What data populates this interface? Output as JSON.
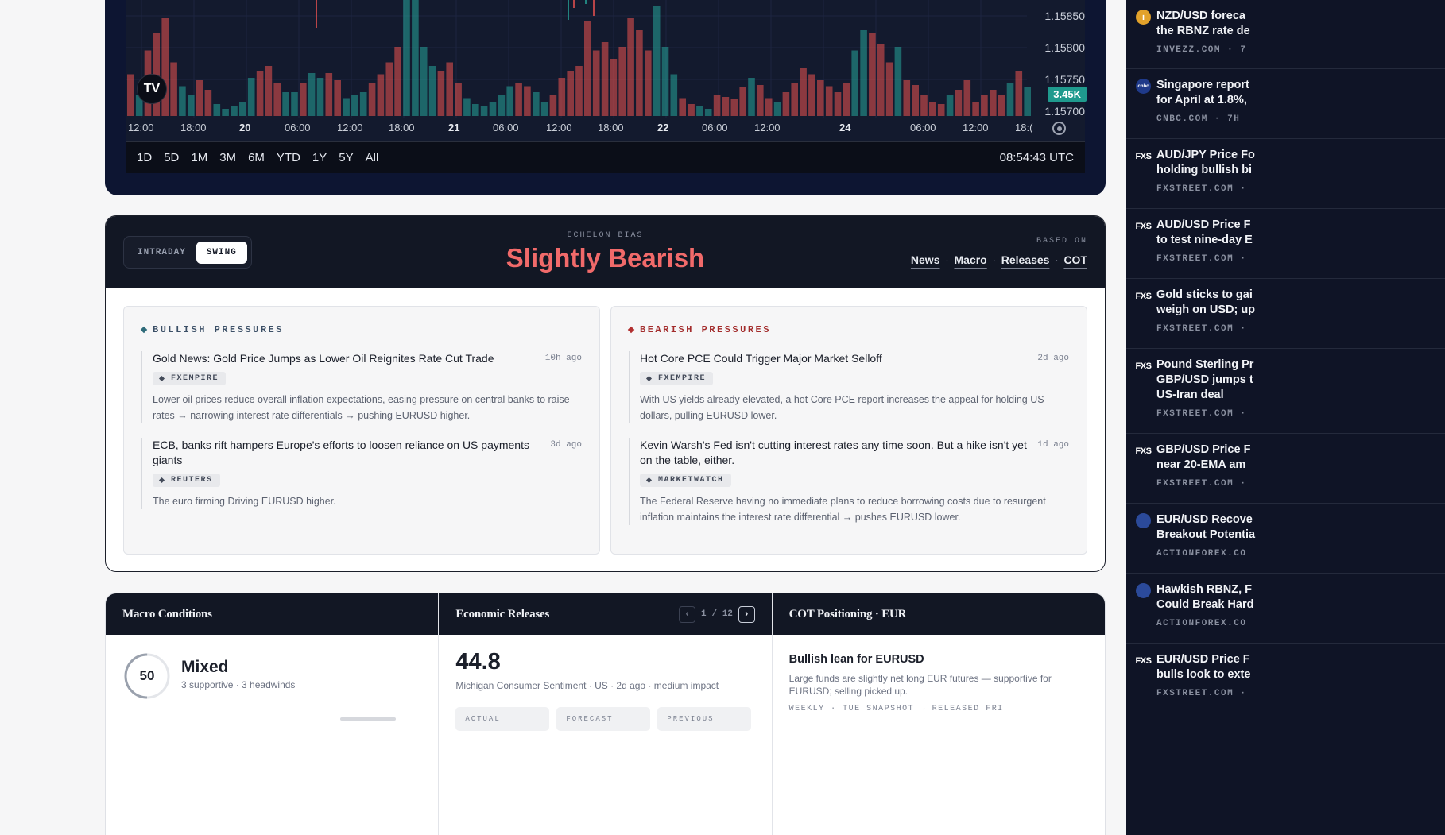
{
  "chart": {
    "price_labels": [
      "1.15850",
      "1.15800",
      "1.15750",
      "1.15700"
    ],
    "volume_badge": "3.45K",
    "logo_text": "TV",
    "time_labels": [
      {
        "t": "12:00",
        "bold": false
      },
      {
        "t": "18:00",
        "bold": false
      },
      {
        "t": "20",
        "bold": true
      },
      {
        "t": "06:00",
        "bold": false
      },
      {
        "t": "12:00",
        "bold": false
      },
      {
        "t": "18:00",
        "bold": false
      },
      {
        "t": "21",
        "bold": true
      },
      {
        "t": "06:00",
        "bold": false
      },
      {
        "t": "12:00",
        "bold": false
      },
      {
        "t": "18:00",
        "bold": false
      },
      {
        "t": "22",
        "bold": true
      },
      {
        "t": "06:00",
        "bold": false
      },
      {
        "t": "12:00",
        "bold": false
      },
      {
        "t": "24",
        "bold": true
      },
      {
        "t": "06:00",
        "bold": false
      },
      {
        "t": "12:00",
        "bold": false
      },
      {
        "t": "18:(",
        "bold": false
      }
    ],
    "ranges": [
      "1D",
      "5D",
      "1M",
      "3M",
      "6M",
      "YTD",
      "1Y",
      "5Y",
      "All"
    ],
    "clock": "08:54:43 UTC"
  },
  "chart_data": {
    "type": "bar",
    "title": "",
    "xlabel": "",
    "ylabel": "",
    "grid": true,
    "colors": {
      "up": "#26a69a",
      "down": "#ef5350"
    },
    "volume_bars": [
      {
        "v": 0.35,
        "up": false
      },
      {
        "v": 0.18,
        "up": true
      },
      {
        "v": 0.55,
        "up": false
      },
      {
        "v": 0.7,
        "up": false
      },
      {
        "v": 0.82,
        "up": false
      },
      {
        "v": 0.45,
        "up": false
      },
      {
        "v": 0.25,
        "up": true
      },
      {
        "v": 0.18,
        "up": true
      },
      {
        "v": 0.3,
        "up": false
      },
      {
        "v": 0.22,
        "up": false
      },
      {
        "v": 0.1,
        "up": true
      },
      {
        "v": 0.06,
        "up": true
      },
      {
        "v": 0.08,
        "up": true
      },
      {
        "v": 0.12,
        "up": true
      },
      {
        "v": 0.32,
        "up": true
      },
      {
        "v": 0.38,
        "up": false
      },
      {
        "v": 0.42,
        "up": false
      },
      {
        "v": 0.28,
        "up": false
      },
      {
        "v": 0.2,
        "up": true
      },
      {
        "v": 0.2,
        "up": true
      },
      {
        "v": 0.28,
        "up": false
      },
      {
        "v": 0.36,
        "up": true
      },
      {
        "v": 0.32,
        "up": true
      },
      {
        "v": 0.36,
        "up": false
      },
      {
        "v": 0.3,
        "up": false
      },
      {
        "v": 0.15,
        "up": true
      },
      {
        "v": 0.18,
        "up": true
      },
      {
        "v": 0.2,
        "up": true
      },
      {
        "v": 0.28,
        "up": false
      },
      {
        "v": 0.35,
        "up": false
      },
      {
        "v": 0.45,
        "up": false
      },
      {
        "v": 0.58,
        "up": false
      },
      {
        "v": 1.0,
        "up": true
      },
      {
        "v": 1.0,
        "up": true
      },
      {
        "v": 0.58,
        "up": true
      },
      {
        "v": 0.42,
        "up": true
      },
      {
        "v": 0.38,
        "up": false
      },
      {
        "v": 0.45,
        "up": false
      },
      {
        "v": 0.28,
        "up": false
      },
      {
        "v": 0.15,
        "up": true
      },
      {
        "v": 0.1,
        "up": true
      },
      {
        "v": 0.08,
        "up": true
      },
      {
        "v": 0.12,
        "up": true
      },
      {
        "v": 0.18,
        "up": true
      },
      {
        "v": 0.25,
        "up": true
      },
      {
        "v": 0.28,
        "up": false
      },
      {
        "v": 0.25,
        "up": false
      },
      {
        "v": 0.2,
        "up": true
      },
      {
        "v": 0.12,
        "up": true
      },
      {
        "v": 0.18,
        "up": false
      },
      {
        "v": 0.32,
        "up": false
      },
      {
        "v": 0.38,
        "up": false
      },
      {
        "v": 0.42,
        "up": false
      },
      {
        "v": 0.8,
        "up": false
      },
      {
        "v": 0.55,
        "up": false
      },
      {
        "v": 0.62,
        "up": false
      },
      {
        "v": 0.48,
        "up": false
      },
      {
        "v": 0.58,
        "up": false
      },
      {
        "v": 0.82,
        "up": false
      },
      {
        "v": 0.72,
        "up": false
      },
      {
        "v": 0.55,
        "up": false
      },
      {
        "v": 0.92,
        "up": true
      },
      {
        "v": 0.58,
        "up": true
      },
      {
        "v": 0.35,
        "up": true
      },
      {
        "v": 0.15,
        "up": false
      },
      {
        "v": 0.1,
        "up": false
      },
      {
        "v": 0.08,
        "up": true
      },
      {
        "v": 0.06,
        "up": true
      },
      {
        "v": 0.18,
        "up": false
      },
      {
        "v": 0.16,
        "up": false
      },
      {
        "v": 0.14,
        "up": false
      },
      {
        "v": 0.24,
        "up": false
      },
      {
        "v": 0.32,
        "up": true
      },
      {
        "v": 0.26,
        "up": false
      },
      {
        "v": 0.15,
        "up": false
      },
      {
        "v": 0.12,
        "up": true
      },
      {
        "v": 0.2,
        "up": false
      },
      {
        "v": 0.28,
        "up": false
      },
      {
        "v": 0.4,
        "up": false
      },
      {
        "v": 0.35,
        "up": false
      },
      {
        "v": 0.3,
        "up": false
      },
      {
        "v": 0.25,
        "up": false
      },
      {
        "v": 0.2,
        "up": false
      },
      {
        "v": 0.28,
        "up": false
      },
      {
        "v": 0.55,
        "up": true
      },
      {
        "v": 0.72,
        "up": true
      },
      {
        "v": 0.7,
        "up": false
      },
      {
        "v": 0.6,
        "up": false
      },
      {
        "v": 0.45,
        "up": false
      },
      {
        "v": 0.58,
        "up": true
      },
      {
        "v": 0.3,
        "up": false
      },
      {
        "v": 0.26,
        "up": false
      },
      {
        "v": 0.18,
        "up": false
      },
      {
        "v": 0.12,
        "up": false
      },
      {
        "v": 0.1,
        "up": false
      },
      {
        "v": 0.18,
        "up": true
      },
      {
        "v": 0.22,
        "up": false
      },
      {
        "v": 0.3,
        "up": false
      },
      {
        "v": 0.12,
        "up": false
      },
      {
        "v": 0.18,
        "up": false
      },
      {
        "v": 0.22,
        "up": false
      },
      {
        "v": 0.18,
        "up": false
      },
      {
        "v": 0.28,
        "up": true
      },
      {
        "v": 0.38,
        "up": false
      },
      {
        "v": 0.24,
        "up": true
      }
    ]
  },
  "bias": {
    "modes": [
      "INTRADAY",
      "SWING"
    ],
    "active_mode": "SWING",
    "label": "ECHELON BIAS",
    "value": "Slightly Bearish",
    "based_label": "BASED ON",
    "based_links": [
      "News",
      "Macro",
      "Releases",
      "COT"
    ],
    "bullish": {
      "title": "BULLISH PRESSURES",
      "items": [
        {
          "title": "Gold News: Gold Price Jumps as Lower Oil Reignites Rate Cut Trade",
          "time": "10h ago",
          "source": "FXEMPIRE",
          "desc": "Lower oil prices reduce overall inflation expectations, easing pressure on central banks to raise rates → narrowing interest rate differentials → pushing EURUSD higher."
        },
        {
          "title": "ECB, banks rift hampers Europe's efforts to loosen reliance on US payments giants",
          "time": "3d ago",
          "source": "REUTERS",
          "desc": "The euro firming Driving EURUSD higher."
        }
      ]
    },
    "bearish": {
      "title": "BEARISH PRESSURES",
      "items": [
        {
          "title": "Hot Core PCE Could Trigger Major Market Selloff",
          "time": "2d ago",
          "source": "FXEMPIRE",
          "desc": "With US yields already elevated, a hot Core PCE report increases the appeal for holding US dollars, pulling EURUSD lower."
        },
        {
          "title": "Kevin Warsh's Fed isn't cutting interest rates any time soon. But a hike isn't yet on the table, either.",
          "time": "1d ago",
          "source": "MARKETWATCH",
          "desc": "The Federal Reserve having no immediate plans to reduce borrowing costs due to resurgent inflation maintains the interest rate differential → pushes EURUSD lower."
        }
      ]
    }
  },
  "macro": {
    "title": "Macro Conditions",
    "score": "50",
    "score_value": 50,
    "score_max": 100,
    "state": "Mixed",
    "sub": "3 supportive · 3 headwinds"
  },
  "releases": {
    "title": "Economic Releases",
    "page": "1",
    "sep": "/",
    "total": "12",
    "value": "44.8",
    "sub": "Michigan Consumer Sentiment · US · 2d ago · medium impact",
    "boxes": [
      "ACTUAL",
      "FORECAST",
      "PREVIOUS"
    ]
  },
  "cot": {
    "title": "COT Positioning · EUR",
    "heading": "Bullish lean for EURUSD",
    "desc": "Large funds are slightly net long EUR futures — supportive for EURUSD; selling picked up.",
    "meta": "WEEKLY · TUE SNAPSHOT → RELEASED FRI"
  },
  "news": [
    {
      "icon": "info-icon",
      "title": "NZD/USD foreca\nthe RBNZ rate de",
      "src": "INVEZZ.COM · 7"
    },
    {
      "icon": "cnbc-icon",
      "title": "Singapore report\nfor April at 1.8%,",
      "src": "CNBC.COM · 7H"
    },
    {
      "icon": "fxs-icon",
      "title": "AUD/JPY Price Fo\nholding bullish bi",
      "src": "FXSTREET.COM ·"
    },
    {
      "icon": "fxs-icon",
      "title": "AUD/USD Price F\nto test nine-day E",
      "src": "FXSTREET.COM ·"
    },
    {
      "icon": "fxs-icon",
      "title": "Gold sticks to gai\nweigh on USD; up",
      "src": "FXSTREET.COM ·"
    },
    {
      "icon": "fxs-icon",
      "title": "Pound Sterling Pr\nGBP/USD jumps t\nUS-Iran deal",
      "src": "FXSTREET.COM ·"
    },
    {
      "icon": "fxs-icon",
      "title": "GBP/USD Price F\nnear 20-EMA am",
      "src": "FXSTREET.COM ·"
    },
    {
      "icon": "actionforex-icon",
      "title": "EUR/USD Recove\nBreakout Potentia",
      "src": "ACTIONFOREX.CO"
    },
    {
      "icon": "actionforex-icon",
      "title": "Hawkish RBNZ, F\nCould Break Hard",
      "src": "ACTIONFOREX.CO"
    },
    {
      "icon": "fxs-icon",
      "title": "EUR/USD Price F\nbulls look to exte",
      "src": "FXSTREET.COM ·"
    }
  ],
  "fxs_label": "FXS",
  "cnbc_label": "cnbc"
}
